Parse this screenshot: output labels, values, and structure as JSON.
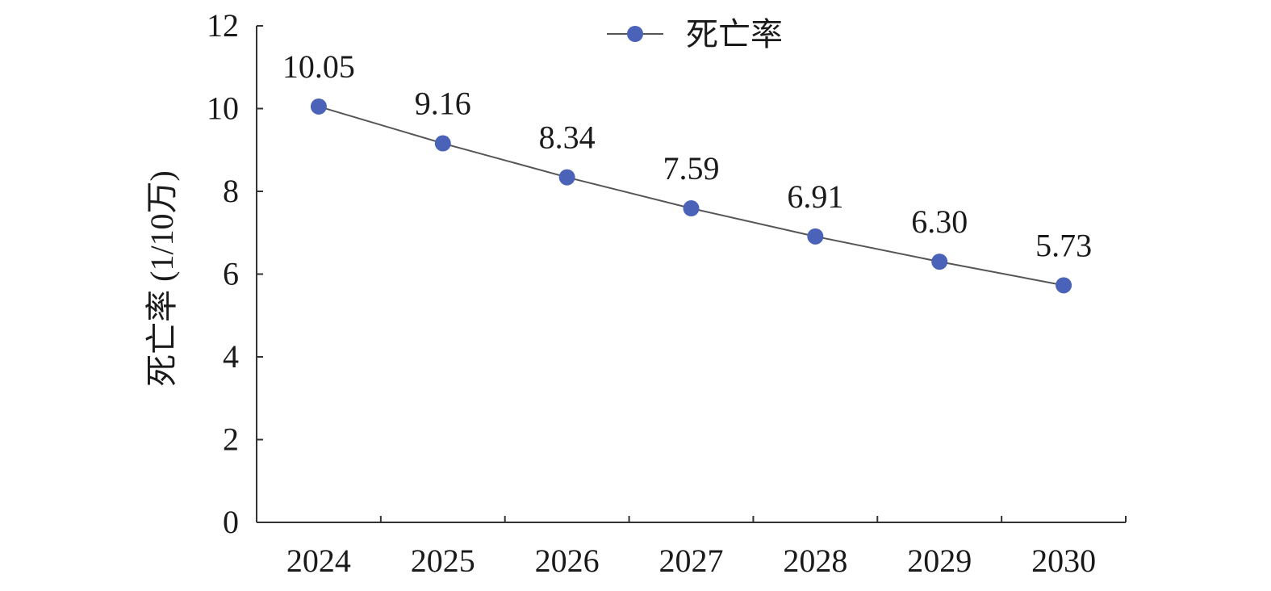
{
  "chart_data": {
    "type": "line",
    "categories": [
      "2024",
      "2025",
      "2026",
      "2027",
      "2028",
      "2029",
      "2030"
    ],
    "series": [
      {
        "name": "死亡率",
        "values": [
          10.05,
          9.16,
          8.34,
          7.59,
          6.91,
          6.3,
          5.73
        ],
        "labels": [
          "10.05",
          "9.16",
          "8.34",
          "7.59",
          "6.91",
          "6.30",
          "5.73"
        ],
        "color": "#4a63b8",
        "line_color": "#555555"
      }
    ],
    "xlabel": "",
    "ylabel": "死亡率 (1/10万)",
    "ylim": [
      0,
      12
    ],
    "yticks": [
      "0",
      "2",
      "4",
      "6",
      "8",
      "10",
      "12"
    ],
    "grid": false,
    "legend_position": "top-center"
  }
}
